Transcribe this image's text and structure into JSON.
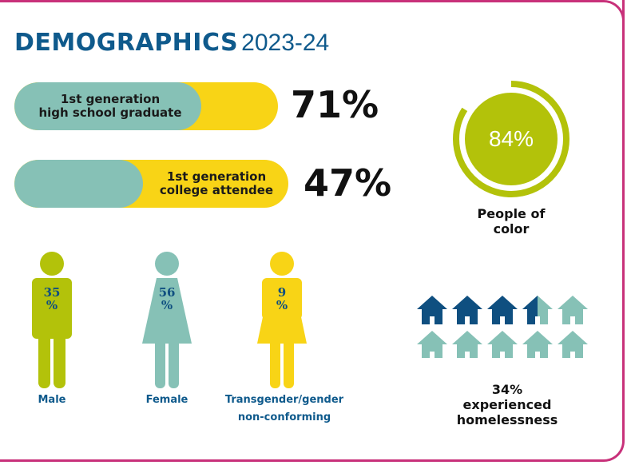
{
  "title": {
    "bold": "DEMOGRAPHICS",
    "year": "2023-24"
  },
  "colors": {
    "teal": "#86c1b6",
    "yellow": "#f8d416",
    "green": "#b3c20a",
    "navy": "#0f4f80",
    "border": "#c8317a"
  },
  "bars": [
    {
      "line1": "1st generation",
      "line2": "high school graduate",
      "pct": "71%",
      "value": 71
    },
    {
      "line1": "1st generation",
      "line2": "college attendee",
      "pct": "47%",
      "value": 47
    }
  ],
  "donut": {
    "pct": "84%",
    "value": 84,
    "caption_line1": "People of",
    "caption_line2": "color"
  },
  "people": [
    {
      "name": "male",
      "pct_num": "35",
      "pct_sign": "%",
      "label_line1": "Male",
      "label_line2": "",
      "value": 35
    },
    {
      "name": "female",
      "pct_num": "56",
      "pct_sign": "%",
      "label_line1": "Female",
      "label_line2": "",
      "value": 56
    },
    {
      "name": "transgender",
      "pct_num": "9",
      "pct_sign": "%",
      "label_line1": "Transgender/gender",
      "label_line2": "non-conforming",
      "value": 9
    }
  ],
  "homelessness": {
    "value": 34,
    "pct": "34%",
    "line1": "experienced",
    "line2": "homelessness"
  },
  "chart_data": [
    {
      "type": "bar",
      "categories": [
        "1st generation high school graduate",
        "1st generation college attendee"
      ],
      "values": [
        71,
        47
      ],
      "ylim": [
        0,
        100
      ]
    },
    {
      "type": "pie",
      "categories": [
        "People of color"
      ],
      "values": [
        84
      ]
    },
    {
      "type": "bar",
      "categories": [
        "Male",
        "Female",
        "Transgender/gender non-conforming"
      ],
      "values": [
        35,
        56,
        9
      ]
    },
    {
      "type": "pie",
      "categories": [
        "experienced homelessness"
      ],
      "values": [
        34
      ]
    }
  ]
}
